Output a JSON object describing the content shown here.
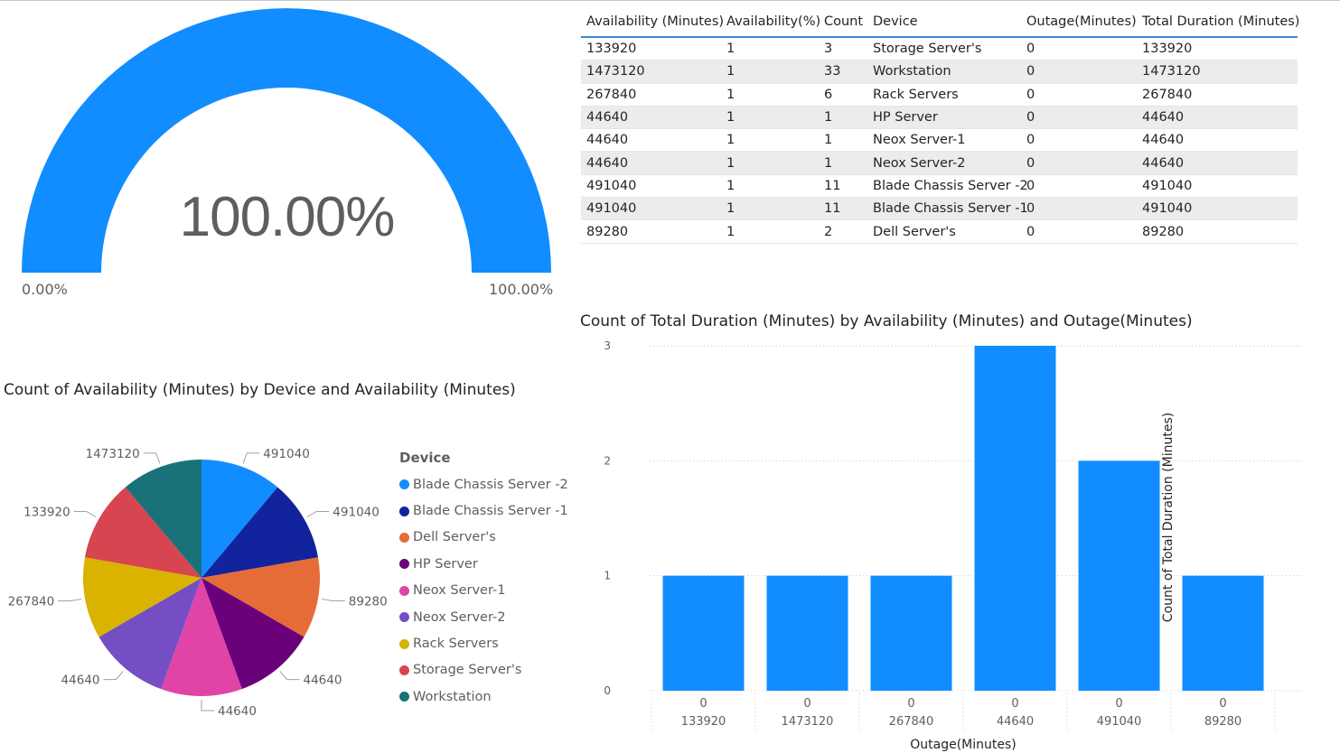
{
  "gauge": {
    "value_label": "100.00%",
    "min_label": "0.00%",
    "max_label": "100.00%",
    "value": 1.0,
    "color": "#118DFF"
  },
  "table": {
    "columns": [
      "Availability (Minutes)",
      "Availability(%)",
      "Count",
      "Device",
      "Outage(Minutes)",
      "Total Duration (Minutes)"
    ],
    "rows": [
      [
        "133920",
        "1",
        "3",
        "Storage Server's",
        "0",
        "133920"
      ],
      [
        "1473120",
        "1",
        "33",
        "Workstation",
        "0",
        "1473120"
      ],
      [
        "267840",
        "1",
        "6",
        "Rack Servers",
        "0",
        "267840"
      ],
      [
        "44640",
        "1",
        "1",
        "HP Server",
        "0",
        "44640"
      ],
      [
        "44640",
        "1",
        "1",
        "Neox Server-1",
        "0",
        "44640"
      ],
      [
        "44640",
        "1",
        "1",
        "Neox Server-2",
        "0",
        "44640"
      ],
      [
        "491040",
        "1",
        "11",
        "Blade Chassis Server -2",
        "0",
        "491040"
      ],
      [
        "491040",
        "1",
        "11",
        "Blade Chassis Server -1",
        "0",
        "491040"
      ],
      [
        "89280",
        "1",
        "2",
        "Dell Server's",
        "0",
        "89280"
      ]
    ]
  },
  "chart_data": [
    {
      "type": "pie",
      "title": "Count of Availability (Minutes) by Device and Availability (Minutes)",
      "legend_title": "Device",
      "legend_position": "right",
      "categories": [
        "Blade Chassis Server  -2",
        "Blade Chassis Server -1",
        "Dell Server's",
        "HP Server",
        "Neox Server-1",
        "Neox Server-2",
        "Rack Servers",
        "Storage Server's",
        "Workstation"
      ],
      "slice_labels": [
        "491040",
        "491040",
        "89280",
        "44640",
        "44640",
        "44640",
        "267840",
        "133920",
        "1473120"
      ],
      "values": [
        1,
        1,
        1,
        1,
        1,
        1,
        1,
        1,
        1
      ],
      "colors": [
        "#118DFF",
        "#12239E",
        "#E66C37",
        "#6B007B",
        "#E044A7",
        "#744EC2",
        "#D9B300",
        "#D64550",
        "#197278"
      ]
    },
    {
      "type": "bar",
      "title": "Count of Total Duration (Minutes) by Availability (Minutes) and Outage(Minutes)",
      "xlabel": "Outage(Minutes)",
      "ylabel": "Count of Total Duration (Minutes)",
      "categories": [
        {
          "outer": "133920",
          "inner": "0"
        },
        {
          "outer": "1473120",
          "inner": "0"
        },
        {
          "outer": "267840",
          "inner": "0"
        },
        {
          "outer": "44640",
          "inner": "0"
        },
        {
          "outer": "491040",
          "inner": "0"
        },
        {
          "outer": "89280",
          "inner": "0"
        }
      ],
      "values": [
        1,
        1,
        1,
        3,
        2,
        1
      ],
      "yticks": [
        "0",
        "1",
        "2",
        "3"
      ],
      "ylim": [
        0,
        3
      ],
      "grid": true,
      "color": "#118DFF"
    }
  ]
}
